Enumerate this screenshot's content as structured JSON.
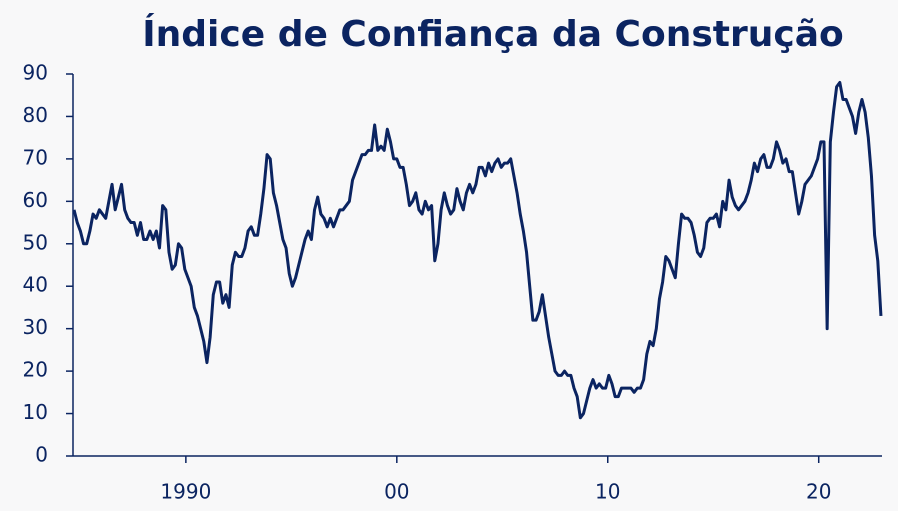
{
  "chart_data": {
    "type": "line",
    "title": "Índice de Confiança da Construção",
    "color": "#0b2461",
    "xlim": [
      1984.65,
      2023.0
    ],
    "xticks": [
      1990,
      {
        "value": 2000,
        "label": "00"
      },
      {
        "value": 2010,
        "label": "10"
      },
      {
        "value": 2020,
        "label": "20"
      }
    ],
    "ylim": [
      0,
      90
    ],
    "yticks": [
      0,
      10,
      20,
      30,
      40,
      50,
      60,
      70,
      80,
      90
    ],
    "x": [
      1984.7,
      1984.85,
      1985,
      1985.15,
      1985.3,
      1985.45,
      1985.6,
      1985.75,
      1985.9,
      1986.05,
      1986.2,
      1986.35,
      1986.5,
      1986.65,
      1986.8,
      1986.95,
      1987.1,
      1987.25,
      1987.4,
      1987.55,
      1987.7,
      1987.85,
      1988,
      1988.15,
      1988.3,
      1988.45,
      1988.6,
      1988.75,
      1988.9,
      1989.05,
      1989.2,
      1989.35,
      1989.5,
      1989.65,
      1989.8,
      1989.95,
      1990.1,
      1990.25,
      1990.4,
      1990.55,
      1990.7,
      1990.85,
      1991,
      1991.15,
      1991.3,
      1991.45,
      1991.6,
      1991.75,
      1991.9,
      1992.05,
      1992.2,
      1992.35,
      1992.5,
      1992.65,
      1992.8,
      1992.95,
      1993.1,
      1993.25,
      1993.4,
      1993.55,
      1993.7,
      1993.85,
      1994,
      1994.15,
      1994.3,
      1994.45,
      1994.6,
      1994.75,
      1994.9,
      1995.05,
      1995.2,
      1995.35,
      1995.5,
      1995.65,
      1995.8,
      1995.95,
      1996.1,
      1996.25,
      1996.4,
      1996.55,
      1996.7,
      1996.85,
      1997,
      1997.15,
      1997.3,
      1997.45,
      1997.6,
      1997.75,
      1997.9,
      1998.05,
      1998.2,
      1998.35,
      1998.5,
      1998.65,
      1998.8,
      1998.95,
      1999.1,
      1999.25,
      1999.4,
      1999.55,
      1999.7,
      1999.85,
      2000,
      2000.15,
      2000.3,
      2000.45,
      2000.6,
      2000.75,
      2000.9,
      2001.05,
      2001.2,
      2001.35,
      2001.5,
      2001.65,
      2001.8,
      2001.95,
      2002.1,
      2002.25,
      2002.4,
      2002.55,
      2002.7,
      2002.85,
      2003,
      2003.15,
      2003.3,
      2003.45,
      2003.6,
      2003.75,
      2003.9,
      2004.05,
      2004.2,
      2004.35,
      2004.5,
      2004.65,
      2004.8,
      2004.95,
      2005.1,
      2005.25,
      2005.4,
      2005.55,
      2005.7,
      2005.85,
      2006,
      2006.15,
      2006.3,
      2006.45,
      2006.6,
      2006.75,
      2006.9,
      2007.05,
      2007.2,
      2007.35,
      2007.5,
      2007.65,
      2007.8,
      2007.95,
      2008.1,
      2008.25,
      2008.4,
      2008.55,
      2008.7,
      2008.85,
      2009,
      2009.15,
      2009.3,
      2009.45,
      2009.6,
      2009.75,
      2009.9,
      2010.05,
      2010.2,
      2010.35,
      2010.5,
      2010.65,
      2010.8,
      2010.95,
      2011.1,
      2011.25,
      2011.4,
      2011.55,
      2011.7,
      2011.85,
      2012,
      2012.15,
      2012.3,
      2012.45,
      2012.6,
      2012.75,
      2012.9,
      2013.05,
      2013.2,
      2013.35,
      2013.5,
      2013.65,
      2013.8,
      2013.95,
      2014.1,
      2014.25,
      2014.4,
      2014.55,
      2014.7,
      2014.85,
      2015,
      2015.15,
      2015.3,
      2015.45,
      2015.6,
      2015.75,
      2015.9,
      2016.05,
      2016.2,
      2016.35,
      2016.5,
      2016.65,
      2016.8,
      2016.95,
      2017.1,
      2017.25,
      2017.4,
      2017.55,
      2017.7,
      2017.85,
      2018,
      2018.15,
      2018.3,
      2018.45,
      2018.6,
      2018.75,
      2018.9,
      2019.05,
      2019.2,
      2019.35,
      2019.5,
      2019.65,
      2019.8,
      2019.95,
      2020.1,
      2020.25,
      2020.4,
      2020.55,
      2020.7,
      2020.85,
      2021,
      2021.15,
      2021.3,
      2021.45,
      2021.6,
      2021.75,
      2021.9,
      2022.05,
      2022.2,
      2022.35,
      2022.5,
      2022.65,
      2022.8,
      2022.95
    ],
    "values": [
      58,
      55,
      53,
      50,
      50,
      53,
      57,
      56,
      58,
      57,
      56,
      60,
      64,
      58,
      61,
      64,
      58,
      56,
      55,
      55,
      52,
      55,
      51,
      51,
      53,
      51,
      53,
      49,
      59,
      58,
      48,
      44,
      45,
      50,
      49,
      44,
      42,
      40,
      35,
      33,
      30,
      27,
      22,
      28,
      38,
      41,
      41,
      36,
      38,
      35,
      45,
      48,
      47,
      47,
      49,
      53,
      54,
      52,
      52,
      57,
      63,
      71,
      70,
      62,
      59,
      55,
      51,
      49,
      43,
      40,
      42,
      45,
      48,
      51,
      53,
      51,
      58,
      61,
      57,
      56,
      54,
      56,
      54,
      56,
      58,
      58,
      59,
      60,
      65,
      67,
      69,
      71,
      71,
      72,
      72,
      78,
      72,
      73,
      72,
      77,
      74,
      70,
      70,
      68,
      68,
      64,
      59,
      60,
      62,
      58,
      57,
      60,
      58,
      59,
      46,
      50,
      58,
      62,
      59,
      57,
      58,
      63,
      60,
      58,
      62,
      64,
      62,
      64,
      68,
      68,
      66,
      69,
      67,
      69,
      70,
      68,
      69,
      69,
      70,
      66,
      62,
      57,
      53,
      48,
      40,
      32,
      32,
      34,
      38,
      33,
      28,
      24,
      20,
      19,
      19,
      20,
      19,
      19,
      16,
      14,
      9,
      10,
      13,
      16,
      18,
      16,
      17,
      16,
      16,
      19,
      17,
      14,
      14,
      16,
      16,
      16,
      16,
      15,
      16,
      16,
      18,
      24,
      27,
      26,
      30,
      37,
      41,
      47,
      46,
      44,
      42,
      50,
      57,
      56,
      56,
      55,
      52,
      48,
      47,
      49,
      55,
      56,
      56,
      57,
      54,
      60,
      58,
      65,
      61,
      59,
      58,
      59,
      60,
      62,
      65,
      69,
      67,
      70,
      71,
      68,
      68,
      70,
      74,
      72,
      69,
      70,
      67,
      67,
      62,
      57,
      60,
      64,
      65,
      66,
      68,
      70,
      74,
      74,
      30,
      74,
      81,
      87,
      88,
      84,
      84,
      82,
      80,
      76,
      81,
      84,
      81,
      75,
      66,
      52,
      46,
      33
    ]
  }
}
